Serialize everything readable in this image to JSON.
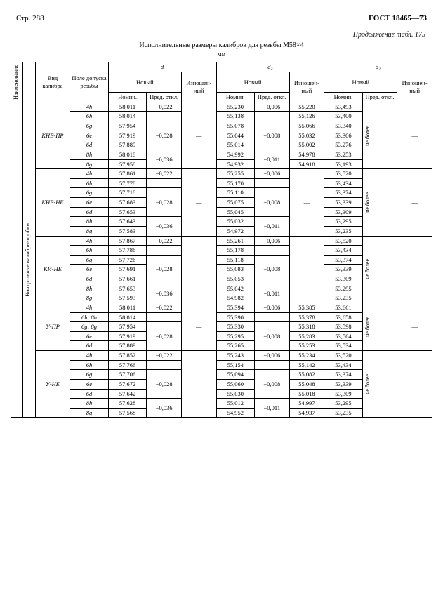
{
  "header": {
    "page": "Стр. 288",
    "gost": "ГОСТ 18465—73"
  },
  "continuation": "Продолжение табл. 175",
  "caption": "Исполнительные размеры калибров для резьбы М58×4",
  "caption_sub": "мм",
  "cols": {
    "vert1": "Наименование",
    "vert2": "Контрольные калибры-пробки",
    "kind": "Вид калибра",
    "tol": "Поле допуска резьбы",
    "d": "d",
    "d2": "d₂",
    "d1": "d₁",
    "new": "Новый",
    "worn": "Изношен-\nный",
    "nom": "Номин.",
    "dev": "Пред.\nоткл."
  },
  "vert_d1": "не более",
  "groups": [
    {
      "name": "КНЕ-ПР",
      "rows": [
        {
          "tol": "4h",
          "d_nom": "58,011",
          "d_dev": "−0,022",
          "d2_nom": "55,230",
          "d2_dev": "−0,006",
          "d2_worn": "55,220",
          "d1_nom": "53,493"
        },
        {
          "tol": "6h",
          "d_nom": "58,014",
          "d_dev": "",
          "d2_nom": "55,138",
          "d2_dev": "",
          "d2_worn": "55,126",
          "d1_nom": "53,400"
        },
        {
          "tol": "6g",
          "d_nom": "57,954",
          "d_dev": "−0,028",
          "d2_nom": "55,078",
          "d2_dev": "−0,008",
          "d2_worn": "55,066",
          "d1_nom": "53,340"
        },
        {
          "tol": "6e",
          "d_nom": "57,919",
          "d_dev": "",
          "d2_nom": "55,044",
          "d2_dev": "",
          "d2_worn": "55,032",
          "d1_nom": "53,306"
        },
        {
          "tol": "6d",
          "d_nom": "57,889",
          "d_dev": "",
          "d2_nom": "55,014",
          "d2_dev": "",
          "d2_worn": "55,002",
          "d1_nom": "53,276"
        },
        {
          "tol": "8h",
          "d_nom": "58,018",
          "d_dev": "−0,036",
          "d2_nom": "54,992",
          "d2_dev": "−0,011",
          "d2_worn": "54,978",
          "d1_nom": "53,253"
        },
        {
          "tol": "8g",
          "d_nom": "57,958",
          "d_dev": "",
          "d2_nom": "54,932",
          "d2_dev": "",
          "d2_worn": "54,918",
          "d1_nom": "53,193"
        }
      ],
      "d_spans": [
        [
          0,
          1
        ],
        [
          1,
          1
        ],
        [
          2,
          3
        ],
        [
          5,
          2
        ]
      ],
      "d2_spans": [
        [
          0,
          1
        ],
        [
          1,
          1
        ],
        [
          2,
          3
        ],
        [
          5,
          2
        ]
      ]
    },
    {
      "name": "КНЕ-НЕ",
      "rows": [
        {
          "tol": "4h",
          "d_nom": "57,861",
          "d_dev": "−0,022",
          "d2_nom": "55,255",
          "d2_dev": "−0,006",
          "d2_worn": "",
          "d1_nom": "53,520"
        },
        {
          "tol": "6h",
          "d_nom": "57,778",
          "d_dev": "",
          "d2_nom": "55,170",
          "d2_dev": "",
          "d2_worn": "",
          "d1_nom": "53,434"
        },
        {
          "tol": "6g",
          "d_nom": "57,718",
          "d_dev": "−0,028",
          "d2_nom": "55,110",
          "d2_dev": "−0,008",
          "d2_worn": "",
          "d1_nom": "53,374"
        },
        {
          "tol": "6e",
          "d_nom": "57,683",
          "d_dev": "",
          "d2_nom": "55,075",
          "d2_dev": "",
          "d2_worn": "",
          "d1_nom": "53,339"
        },
        {
          "tol": "6d",
          "d_nom": "57,653",
          "d_dev": "",
          "d2_nom": "55,045",
          "d2_dev": "",
          "d2_worn": "",
          "d1_nom": "53,309"
        },
        {
          "tol": "8h",
          "d_nom": "57,643",
          "d_dev": "−0,036",
          "d2_nom": "55,032",
          "d2_dev": "−0,011",
          "d2_worn": "",
          "d1_nom": "53,295"
        },
        {
          "tol": "8g",
          "d_nom": "57,583",
          "d_dev": "",
          "d2_nom": "54,972",
          "d2_dev": "",
          "d2_worn": "",
          "d1_nom": "53,235"
        }
      ],
      "d_spans": [
        [
          0,
          1
        ],
        [
          1,
          1
        ],
        [
          2,
          3
        ],
        [
          5,
          2
        ]
      ],
      "d2_spans": [
        [
          0,
          1
        ],
        [
          1,
          1
        ],
        [
          2,
          3
        ],
        [
          5,
          2
        ]
      ],
      "d2_worn_dash": true
    },
    {
      "name": "КИ-НЕ",
      "rows": [
        {
          "tol": "4h",
          "d_nom": "57,867",
          "d_dev": "−0,022",
          "d2_nom": "55,261",
          "d2_dev": "−0,006",
          "d2_worn": "",
          "d1_nom": "53,520"
        },
        {
          "tol": "6h",
          "d_nom": "57,786",
          "d_dev": "",
          "d2_nom": "55,178",
          "d2_dev": "",
          "d2_worn": "",
          "d1_nom": "53,434"
        },
        {
          "tol": "6g",
          "d_nom": "57,726",
          "d_dev": "−0,028",
          "d2_nom": "55,118",
          "d2_dev": "−0,008",
          "d2_worn": "",
          "d1_nom": "53,374"
        },
        {
          "tol": "6e",
          "d_nom": "57,691",
          "d_dev": "",
          "d2_nom": "55,083",
          "d2_dev": "",
          "d2_worn": "",
          "d1_nom": "53,339"
        },
        {
          "tol": "6d",
          "d_nom": "57,661",
          "d_dev": "",
          "d2_nom": "55,053",
          "d2_dev": "",
          "d2_worn": "",
          "d1_nom": "53,309"
        },
        {
          "tol": "8h",
          "d_nom": "57,653",
          "d_dev": "−0,036",
          "d2_nom": "55,042",
          "d2_dev": "−0,011",
          "d2_worn": "",
          "d1_nom": "53,295"
        },
        {
          "tol": "8g",
          "d_nom": "57,593",
          "d_dev": "",
          "d2_nom": "54,982",
          "d2_dev": "",
          "d2_worn": "",
          "d1_nom": "53,235"
        }
      ],
      "d_spans": [
        [
          0,
          1
        ],
        [
          1,
          1
        ],
        [
          2,
          3
        ],
        [
          5,
          2
        ]
      ],
      "d2_spans": [
        [
          0,
          1
        ],
        [
          1,
          1
        ],
        [
          2,
          3
        ],
        [
          5,
          2
        ]
      ],
      "d2_worn_dash": true
    },
    {
      "name": "У-ПР",
      "rows": [
        {
          "tol": "4h",
          "d_nom": "58,011",
          "d_dev": "−0,022",
          "d2_nom": "55,394",
          "d2_dev": "−0,006",
          "d2_worn": "55,385",
          "d1_nom": "53,661"
        },
        {
          "tol": "6h; 8h",
          "d_nom": "58,014",
          "d_dev": "",
          "d2_nom": "55,390",
          "d2_dev": "",
          "d2_worn": "55,378",
          "d1_nom": "53,658"
        },
        {
          "tol": "6g; 8g",
          "d_nom": "57,954",
          "d_dev": "−0,028",
          "d2_nom": "55,330",
          "d2_dev": "−0,008",
          "d2_worn": "55,318",
          "d1_nom": "53,598"
        },
        {
          "tol": "6e",
          "d_nom": "57,919",
          "d_dev": "",
          "d2_nom": "55,295",
          "d2_dev": "",
          "d2_worn": "55,283",
          "d1_nom": "53,564"
        },
        {
          "tol": "6d",
          "d_nom": "57,889",
          "d_dev": "",
          "d2_nom": "55,265",
          "d2_dev": "",
          "d2_worn": "55,253",
          "d1_nom": "53,534"
        }
      ],
      "d_spans": [
        [
          0,
          1
        ],
        [
          1,
          1
        ],
        [
          2,
          3
        ]
      ],
      "d2_spans": [
        [
          0,
          1
        ],
        [
          1,
          1
        ],
        [
          2,
          3
        ]
      ]
    },
    {
      "name": "У-НЕ",
      "rows": [
        {
          "tol": "4h",
          "d_nom": "57,852",
          "d_dev": "−0,022",
          "d2_nom": "55,243",
          "d2_dev": "−0,006",
          "d2_worn": "55,234",
          "d1_nom": "53,520"
        },
        {
          "tol": "6h",
          "d_nom": "57,766",
          "d_dev": "",
          "d2_nom": "55,154",
          "d2_dev": "",
          "d2_worn": "55,142",
          "d1_nom": "53,434"
        },
        {
          "tol": "6g",
          "d_nom": "57,706",
          "d_dev": "−0,028",
          "d2_nom": "55,094",
          "d2_dev": "−0,008",
          "d2_worn": "55,082",
          "d1_nom": "53,374"
        },
        {
          "tol": "6e",
          "d_nom": "57,672",
          "d_dev": "",
          "d2_nom": "55,060",
          "d2_dev": "",
          "d2_worn": "55,048",
          "d1_nom": "53,339"
        },
        {
          "tol": "6d",
          "d_nom": "57,642",
          "d_dev": "",
          "d2_nom": "55,030",
          "d2_dev": "",
          "d2_worn": "55,018",
          "d1_nom": "53,309"
        },
        {
          "tol": "8h",
          "d_nom": "57,628",
          "d_dev": "−0,036",
          "d2_nom": "55,012",
          "d2_dev": "−0,011",
          "d2_worn": "54,997",
          "d1_nom": "53,295"
        },
        {
          "tol": "8g",
          "d_nom": "57,568",
          "d_dev": "",
          "d2_nom": "54,952",
          "d2_dev": "",
          "d2_worn": "54,937",
          "d1_nom": "53,235"
        }
      ],
      "d_spans": [
        [
          0,
          1
        ],
        [
          1,
          1
        ],
        [
          2,
          3
        ],
        [
          5,
          2
        ]
      ],
      "d2_spans": [
        [
          0,
          1
        ],
        [
          1,
          1
        ],
        [
          2,
          3
        ],
        [
          5,
          2
        ]
      ]
    }
  ],
  "totalRows": 33
}
